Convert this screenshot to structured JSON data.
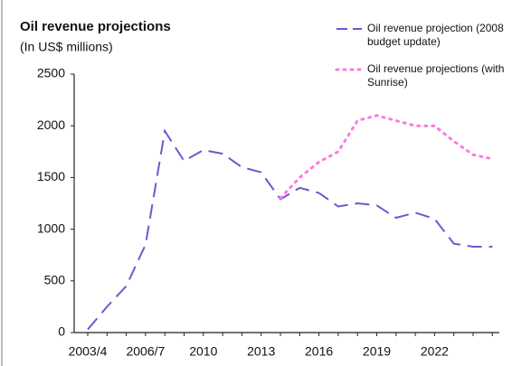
{
  "chart_data": {
    "type": "line",
    "title": "Oil revenue projections",
    "subtitle": "(In US$ millions)",
    "categories": [
      "2003/4",
      null,
      null,
      "2006/7",
      null,
      null,
      "2010",
      null,
      null,
      "2013",
      null,
      null,
      "2016",
      null,
      null,
      "2019",
      null,
      null,
      "2022",
      null,
      null,
      null
    ],
    "series": [
      {
        "name": "Oil revenue projection (2008 budget update)",
        "color": "#6a5ad0",
        "style": "dashed",
        "values": [
          30,
          250,
          450,
          850,
          1950,
          1660,
          1765,
          1730,
          1600,
          1550,
          1290,
          1400,
          1350,
          1220,
          1250,
          1230,
          1110,
          1160,
          1100,
          860,
          830,
          830
        ]
      },
      {
        "name": "Oil revenue projections (with Sunrise)",
        "color": "#ff78e0",
        "style": "dotted",
        "values": [
          null,
          null,
          null,
          null,
          null,
          null,
          null,
          null,
          null,
          null,
          1300,
          1500,
          1650,
          1750,
          2050,
          2100,
          2050,
          2000,
          2000,
          1850,
          1720,
          1680
        ]
      }
    ],
    "ylim": [
      0,
      2500
    ],
    "yticks": [
      0,
      500,
      1000,
      1500,
      2000,
      2500
    ],
    "legend": "top-right"
  }
}
